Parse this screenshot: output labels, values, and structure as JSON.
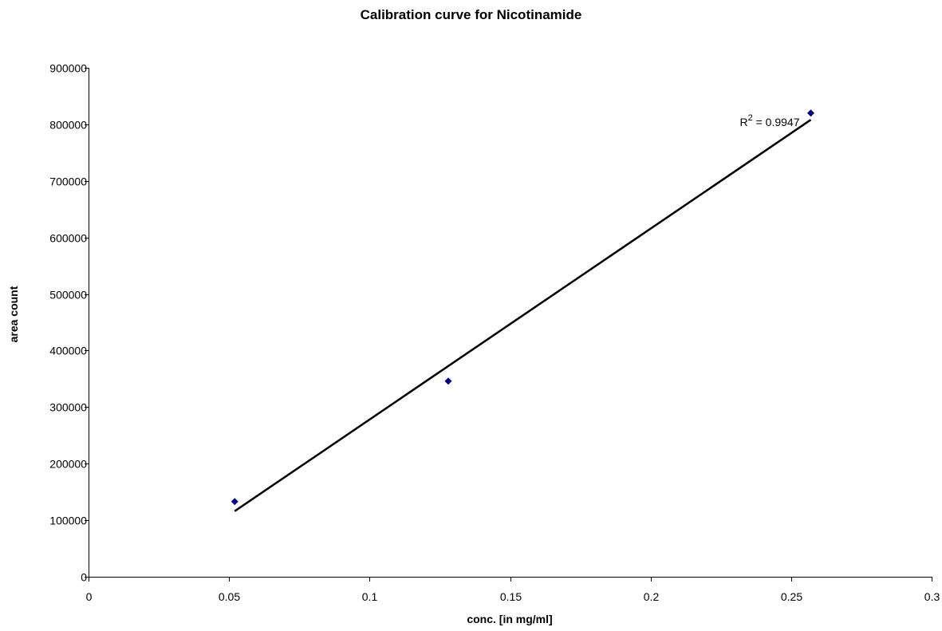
{
  "chart_data": {
    "type": "scatter",
    "title": "Calibration curve for Nicotinamide",
    "xlabel": "conc. [in mg/ml]",
    "ylabel": "area count",
    "xlim": [
      0,
      0.3
    ],
    "ylim": [
      0,
      900000
    ],
    "x_ticks": [
      "0",
      "0.05",
      "0.1",
      "0.15",
      "0.2",
      "0.25",
      "0.3"
    ],
    "y_ticks": [
      "0",
      "100000",
      "200000",
      "300000",
      "400000",
      "500000",
      "600000",
      "700000",
      "800000",
      "900000"
    ],
    "grid": false,
    "legend": "none",
    "series": [
      {
        "points": [
          {
            "x": 0.052,
            "y": 133000
          },
          {
            "x": 0.128,
            "y": 346000
          },
          {
            "x": 0.257,
            "y": 820000
          }
        ],
        "marker": "diamond",
        "color": "#000080"
      }
    ],
    "trendline": {
      "type": "linear",
      "x_start": 0.052,
      "y_start": 116000,
      "x_end": 0.257,
      "y_end": 808000,
      "color": "#000000"
    },
    "annotations": [
      {
        "text": "R",
        "superscript": "2",
        "suffix": " = 0.9947"
      }
    ]
  }
}
